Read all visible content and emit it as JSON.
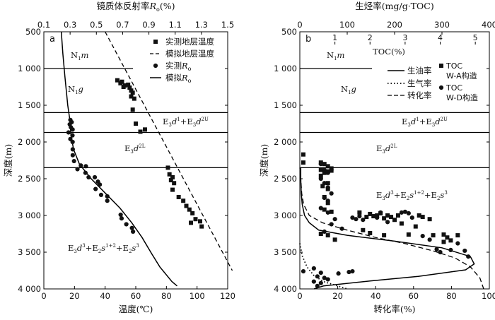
{
  "chart_data": [
    {
      "panel_label": "a",
      "type": "scatter",
      "xlabel": "温度(℃)",
      "x_ticks": [
        "0",
        "20",
        "40",
        "60",
        "80",
        "100",
        "120"
      ],
      "xlim": [
        0,
        120
      ],
      "top_xlabel": "镜质体反射率Ro(%)",
      "top_xlabel_main": "镜质体反射率",
      "top_xlabel_var": "R",
      "top_xlabel_sub": "o",
      "top_xlabel_unit": "(%)",
      "top_ticks": [
        "0.1",
        "0.3",
        "0.5",
        "0.7",
        "0.9",
        "1.1",
        "1.3",
        "1.5"
      ],
      "top_xlim": [
        0.1,
        1.5
      ],
      "ylabel": "深度(m)",
      "y_ticks": [
        "500",
        "1 000",
        "1 500",
        "2 000",
        "2 500",
        "3 000",
        "3 500",
        "4 000"
      ],
      "ylim": [
        500,
        4000
      ],
      "formation_lines": [
        1000,
        1600,
        1870,
        2350
      ],
      "formations": [
        {
          "m": "N",
          "s": "1",
          "v": "m"
        },
        {
          "m": "N",
          "s": "1",
          "v": "g"
        },
        {
          "m": "E",
          "s": "3",
          "v": "d",
          "sup": "1",
          "m2": "+E",
          "s2": "3",
          "v2": "d",
          "sup2": "2U"
        },
        {
          "m": "E",
          "s": "3",
          "v": "d",
          "sup": "2L"
        },
        {
          "m": "E",
          "s": "3",
          "v": "d",
          "sup": "3",
          "m2": "+E",
          "s2": "2",
          "v2": "s",
          "sup2": "1+2",
          "m3": "+E",
          "s3": "2",
          "v3": "s",
          "sup3": "3"
        }
      ],
      "legend": {
        "measured_temp": "实测地层温度",
        "simulated_temp": "模拟地层温度",
        "measured_ro": "实测Ro",
        "simulated_ro": "模拟Ro",
        "ro_prefix_measured": "实测",
        "ro_prefix_simulated": "模拟",
        "ro_var": "R",
        "ro_sub": "o"
      },
      "series": [
        {
          "name": "实测地层温度",
          "axis": "temperature",
          "points": [
            [
              48,
              1160
            ],
            [
              51,
              1180
            ],
            [
              50,
              1200
            ],
            [
              53,
              1230
            ],
            [
              55,
              1220
            ],
            [
              52,
              1250
            ],
            [
              56,
              1260
            ],
            [
              57,
              1300
            ],
            [
              58,
              1330
            ],
            [
              57,
              1380
            ],
            [
              59,
              1410
            ],
            [
              58,
              1560
            ],
            [
              60,
              1750
            ],
            [
              63,
              1860
            ],
            [
              66,
              1830
            ],
            [
              81,
              2350
            ],
            [
              82,
              2440
            ],
            [
              84,
              2480
            ],
            [
              83,
              2520
            ],
            [
              85,
              2560
            ],
            [
              84,
              2650
            ],
            [
              88,
              2750
            ],
            [
              91,
              2800
            ],
            [
              93,
              2870
            ],
            [
              95,
              2920
            ],
            [
              97,
              2970
            ],
            [
              99,
              3050
            ],
            [
              96,
              3100
            ],
            [
              102,
              3080
            ],
            [
              103,
              3150
            ]
          ]
        },
        {
          "name": "模拟地层温度",
          "axis": "temperature",
          "points": [
            [
              40,
              500
            ],
            [
              123,
              3750
            ]
          ]
        },
        {
          "name": "实测Ro",
          "axis": "ro",
          "points": [
            [
              0.302,
              1700
            ],
            [
              0.312,
              1730
            ],
            [
              0.297,
              1760
            ],
            [
              0.306,
              1800
            ],
            [
              0.319,
              1830
            ],
            [
              0.288,
              1870
            ],
            [
              0.318,
              1910
            ],
            [
              0.302,
              1960
            ],
            [
              0.319,
              2000
            ],
            [
              0.32,
              2100
            ],
            [
              0.32,
              2180
            ],
            [
              0.33,
              2260
            ],
            [
              0.382,
              2320
            ],
            [
              0.42,
              2330
            ],
            [
              0.356,
              2370
            ],
            [
              0.417,
              2420
            ],
            [
              0.441,
              2480
            ],
            [
              0.488,
              2480
            ],
            [
              0.512,
              2540
            ],
            [
              0.526,
              2580
            ],
            [
              0.494,
              2640
            ],
            [
              0.536,
              2720
            ],
            [
              0.583,
              2740
            ],
            [
              0.583,
              2800
            ],
            [
              0.685,
              2990
            ],
            [
              0.692,
              3040
            ],
            [
              0.728,
              3120
            ],
            [
              0.771,
              3170
            ],
            [
              0.779,
              3220
            ]
          ]
        },
        {
          "name": "模拟Ro",
          "axis": "ro",
          "points": [
            [
              0.233,
              500
            ],
            [
              0.245,
              800
            ],
            [
              0.26,
              1100
            ],
            [
              0.282,
              1500
            ],
            [
              0.298,
              1700
            ],
            [
              0.306,
              1900
            ],
            [
              0.326,
              2100
            ],
            [
              0.371,
              2300
            ],
            [
              0.46,
              2500
            ],
            [
              0.57,
              2700
            ],
            [
              0.68,
              2900
            ],
            [
              0.77,
              3100
            ],
            [
              0.848,
              3300
            ],
            [
              0.914,
              3500
            ],
            [
              0.983,
              3700
            ],
            [
              1.075,
              3900
            ],
            [
              1.115,
              3960
            ]
          ]
        }
      ]
    },
    {
      "panel_label": "b",
      "type": "scatter",
      "xlabel": "转化率(%)",
      "x_ticks": [
        "0",
        "20",
        "40",
        "60",
        "80",
        "100"
      ],
      "xlim": [
        0,
        100
      ],
      "top_xlabel": "生烃率(mg/g·TOC)",
      "top_ticks": [
        "0",
        "100",
        "200",
        "300",
        "400"
      ],
      "top_xlim": [
        0,
        400
      ],
      "toc_label": "TOC(%)",
      "toc_ticks": [
        "1",
        "2",
        "3",
        "4",
        "5"
      ],
      "toc_xlim": [
        0,
        5.4
      ],
      "ylabel": "深度(m)",
      "y_ticks": [
        "500",
        "1 000",
        "1 500",
        "2 000",
        "2 500",
        "3 000",
        "3 500",
        "4 000"
      ],
      "ylim": [
        500,
        4000
      ],
      "formation_lines": [
        1000,
        1600,
        1870,
        2350
      ],
      "formations": [
        {
          "m": "N",
          "s": "1",
          "v": "m"
        },
        {
          "m": "N",
          "s": "1",
          "v": "g"
        },
        {
          "m": "E",
          "s": "3",
          "v": "d",
          "sup": "1",
          "m2": "+E",
          "s2": "3",
          "v2": "d",
          "sup2": "2U"
        },
        {
          "m": "E",
          "s": "3",
          "v": "d",
          "sup": "2L"
        },
        {
          "m": "E",
          "s": "3",
          "v": "d",
          "sup": "3",
          "m2": "+E",
          "s2": "2",
          "v2": "s",
          "sup2": "1+2",
          "m3": "+E",
          "s3": "2",
          "v3": "s",
          "sup3": "3"
        }
      ],
      "legend": {
        "oil_rate": "生油率",
        "gas_rate": "生气率",
        "conversion": "转化率",
        "toc_wa_1": "TOC",
        "toc_wa_2": "W-A构造",
        "toc_wd_1": "TOC",
        "toc_wd_2": "W-D构造"
      },
      "series": [
        {
          "name": "生油率",
          "axis": "generation_rate",
          "points": [
            [
              2,
              2350
            ],
            [
              2,
              2500
            ],
            [
              3,
              2700
            ],
            [
              5,
              2850
            ],
            [
              10,
              3000
            ],
            [
              20,
              3100
            ],
            [
              40,
              3200
            ],
            [
              100,
              3270
            ],
            [
              200,
              3350
            ],
            [
              300,
              3440
            ],
            [
              360,
              3560
            ],
            [
              368,
              3660
            ],
            [
              350,
              3740
            ],
            [
              250,
              3830
            ],
            [
              150,
              3890
            ],
            [
              50,
              3960
            ],
            [
              30,
              4000
            ]
          ]
        },
        {
          "name": "生气率",
          "axis": "generation_rate",
          "points": [
            [
              0,
              3380
            ],
            [
              5,
              3550
            ],
            [
              15,
              3700
            ],
            [
              30,
              3820
            ],
            [
              50,
              3900
            ],
            [
              80,
              3960
            ],
            [
              100,
              4000
            ]
          ]
        },
        {
          "name": "转化率",
          "axis": "conversion",
          "points": [
            [
              0,
              2350
            ],
            [
              0.5,
              2500
            ],
            [
              1,
              2700
            ],
            [
              2,
              2850
            ],
            [
              5,
              3000
            ],
            [
              12,
              3100
            ],
            [
              25,
              3200
            ],
            [
              40,
              3300
            ],
            [
              55,
              3380
            ],
            [
              70,
              3480
            ],
            [
              82,
              3580
            ],
            [
              90,
              3700
            ],
            [
              95,
              3850
            ],
            [
              97,
              4000
            ]
          ]
        },
        {
          "name": "TOC W-A构造",
          "axis": "toc",
          "points": [
            [
              0.1,
              2170
            ],
            [
              0.1,
              2280
            ],
            [
              0.6,
              2280
            ],
            [
              0.7,
              2300
            ],
            [
              0.8,
              2330
            ],
            [
              0.9,
              2360
            ],
            [
              0.6,
              2380
            ],
            [
              0.8,
              2400
            ],
            [
              0.9,
              2390
            ],
            [
              0.7,
              2420
            ],
            [
              0.6,
              2460
            ],
            [
              0.8,
              2560
            ],
            [
              0.65,
              2600
            ],
            [
              0.8,
              2640
            ],
            [
              0.7,
              2750
            ],
            [
              0.8,
              2830
            ],
            [
              0.7,
              2920
            ],
            [
              0.9,
              2950
            ],
            [
              1.7,
              2960
            ],
            [
              1.9,
              3020
            ],
            [
              2.0,
              2980
            ],
            [
              2.3,
              2970
            ],
            [
              2.2,
              3000
            ],
            [
              2.1,
              3010
            ],
            [
              2.4,
              3040
            ],
            [
              2.5,
              3000
            ],
            [
              2.6,
              3020
            ],
            [
              2.8,
              3000
            ],
            [
              2.7,
              3060
            ],
            [
              2.9,
              3110
            ],
            [
              3.4,
              3000
            ],
            [
              3.5,
              3020
            ],
            [
              3.7,
              3050
            ],
            [
              3.3,
              3150
            ],
            [
              1.8,
              3200
            ],
            [
              2.0,
              3240
            ],
            [
              2.4,
              3270
            ],
            [
              3.1,
              3260
            ],
            [
              3.8,
              3270
            ],
            [
              4.1,
              3260
            ],
            [
              4.2,
              3300
            ],
            [
              4.3,
              3340
            ],
            [
              4.1,
              3360
            ],
            [
              4.5,
              3270
            ],
            [
              0.6,
              3250
            ],
            [
              0.8,
              3270
            ],
            [
              1.0,
              3330
            ]
          ]
        },
        {
          "name": "TOC W-D构造",
          "axis": "toc",
          "points": [
            [
              0.6,
              2300
            ],
            [
              0.7,
              2380
            ],
            [
              0.8,
              2420
            ],
            [
              0.6,
              2500
            ],
            [
              0.7,
              2560
            ],
            [
              0.8,
              2620
            ],
            [
              0.9,
              2700
            ],
            [
              0.7,
              2760
            ],
            [
              0.8,
              2800
            ],
            [
              0.6,
              2900
            ],
            [
              0.8,
              2960
            ],
            [
              1.0,
              3050
            ],
            [
              0.9,
              3120
            ],
            [
              1.2,
              3180
            ],
            [
              0.7,
              3220
            ],
            [
              1.5,
              3030
            ],
            [
              1.6,
              3050
            ],
            [
              1.7,
              3010
            ],
            [
              1.8,
              3060
            ],
            [
              2.2,
              3030
            ],
            [
              2.3,
              2960
            ],
            [
              2.5,
              3090
            ],
            [
              2.9,
              2960
            ],
            [
              3.0,
              2950
            ],
            [
              3.1,
              2970
            ],
            [
              3.2,
              3030
            ],
            [
              3.5,
              3280
            ],
            [
              3.7,
              3330
            ],
            [
              3.9,
              3460
            ],
            [
              4.0,
              3500
            ],
            [
              4.3,
              3470
            ],
            [
              4.5,
              3380
            ],
            [
              4.7,
              3480
            ],
            [
              4.8,
              3560
            ],
            [
              0.1,
              3760
            ],
            [
              0.4,
              3720
            ],
            [
              0.6,
              3780
            ],
            [
              0.5,
              3830
            ],
            [
              0.7,
              3850
            ],
            [
              0.8,
              3870
            ],
            [
              0.4,
              3900
            ],
            [
              0.6,
              3920
            ],
            [
              0.5,
              3960
            ],
            [
              1.1,
              3790
            ],
            [
              1.4,
              3770
            ],
            [
              1.5,
              3760
            ]
          ]
        }
      ]
    }
  ]
}
